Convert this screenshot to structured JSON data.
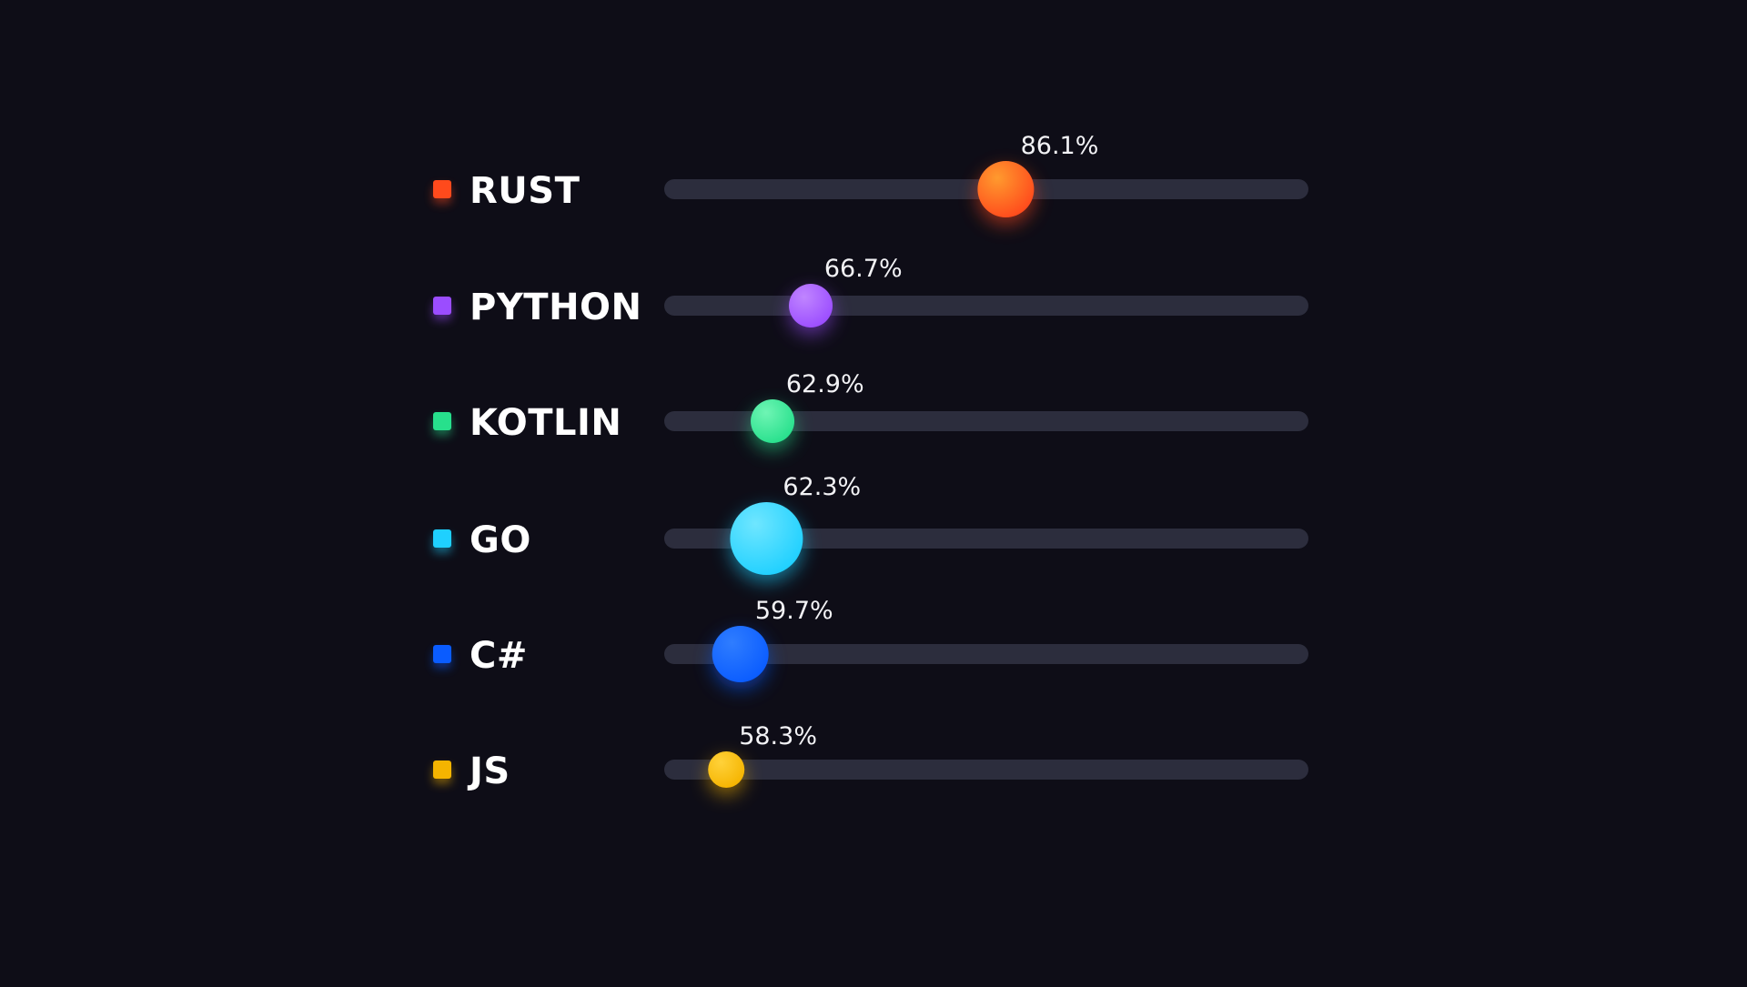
{
  "chart_data": {
    "type": "dot",
    "value_unit": "%",
    "xlim": [
      0,
      100
    ],
    "rows": [
      {
        "label": "RUST",
        "value": 86.1,
        "value_label": "86.1%",
        "color": "#ff4a1c",
        "color_light": "#ff9a2e",
        "size": "large"
      },
      {
        "label": "PYTHON",
        "value": 66.7,
        "value_label": "66.7%",
        "color": "#9b4dff",
        "color_light": "#c085ff",
        "size": "medium"
      },
      {
        "label": "KOTLIN",
        "value": 62.9,
        "value_label": "62.9%",
        "color": "#27e08c",
        "color_light": "#6ff5b4",
        "size": "medium"
      },
      {
        "label": "GO",
        "value": 62.3,
        "value_label": "62.3%",
        "color": "#1fd0ff",
        "color_light": "#6fe6ff",
        "size": "xlarge"
      },
      {
        "label": "C#",
        "value": 59.7,
        "value_label": "59.7%",
        "color": "#0a5cff",
        "color_light": "#2f7dff",
        "size": "large"
      },
      {
        "label": "JS",
        "value": 58.3,
        "value_label": "58.3%",
        "color": "#f5b400",
        "color_light": "#ffd23a",
        "size": "small"
      }
    ]
  },
  "colors": {
    "background": "#0e0d17",
    "track": "#2c2d3d",
    "label": "#ffffff",
    "label_muted": "#d9d9de"
  }
}
